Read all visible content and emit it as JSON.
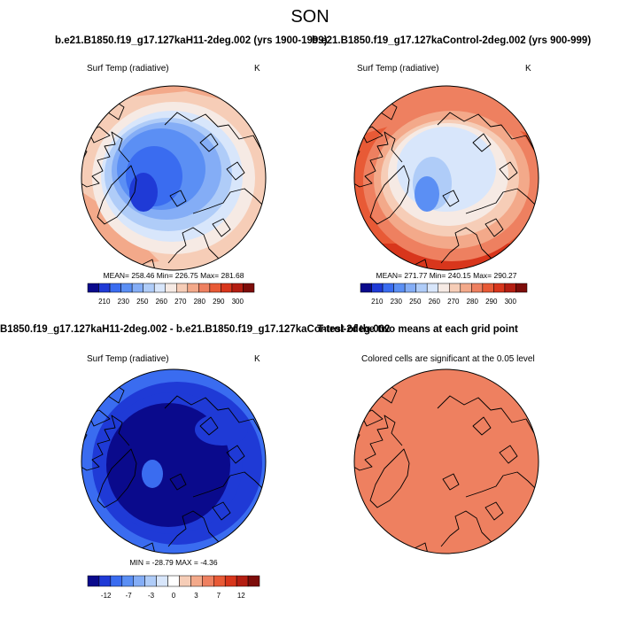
{
  "figure": {
    "season_title": "SON",
    "header_left": "b.e21.B1850.f19_g17.127kaH11-2deg.002 (yrs 1900-1999)",
    "header_right": "b.e21.B1850.f19_g17.127kaControl-2deg.002 (yrs 900-999)",
    "header_diff": "B1850.f19_g17.127kaH11-2deg.002 - b.e21.B1850.f19_g17.127kaControl-2deg.002",
    "header_ttest": "T-test of the two means at each grid point"
  },
  "panels": {
    "top_left": {
      "title": "Surf Temp (radiative)",
      "units": "K",
      "stats": "MEAN= 258.46  Min= 226.75  Max= 281.68"
    },
    "top_right": {
      "title": "Surf Temp (radiative)",
      "units": "K",
      "stats": "MEAN= 271.77  Min= 240.15  Max= 290.27"
    },
    "bottom_left": {
      "title": "Surf Temp (radiative)",
      "units": "K",
      "stats": "MIN = -28.79  MAX =  -4.36"
    },
    "bottom_right": {
      "title": "Colored cells are significant at the 0.05 level"
    }
  },
  "colorbars": {
    "abs_ticks": [
      "210",
      "230",
      "250",
      "260",
      "270",
      "280",
      "290",
      "300"
    ],
    "diff_ticks": [
      "-12",
      "-7",
      "-3",
      "0",
      "3",
      "7",
      "12"
    ],
    "abs_colors": [
      "#0a0a8c",
      "#1f3ad6",
      "#3a6cf0",
      "#5b8ff4",
      "#84adf6",
      "#afccf8",
      "#d8e6fb",
      "#f6eae4",
      "#f6cdb7",
      "#f3a98a",
      "#ee8060",
      "#e85a36",
      "#d8361c",
      "#b41e12",
      "#7d0d0a"
    ],
    "diff_colors": [
      "#0a0a8c",
      "#1f3ad6",
      "#3a6cf0",
      "#5b8ff4",
      "#84adf6",
      "#afccf8",
      "#d8e6fb",
      "#ffffff",
      "#f6cdb7",
      "#f3a98a",
      "#ee8060",
      "#e85a36",
      "#d8361c",
      "#b41e12",
      "#7d0d0a"
    ]
  }
}
